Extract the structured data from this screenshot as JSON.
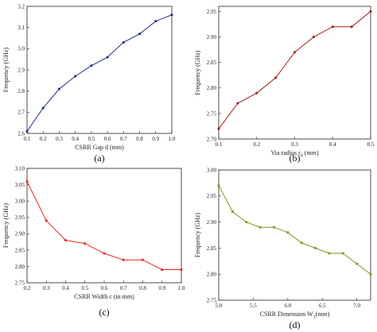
{
  "chart_data": [
    {
      "type": "line",
      "caption": "(a)",
      "xlabel": "CSRR Gap d (mm)",
      "ylabel": "Frequency (GHz)",
      "xlim": [
        0.1,
        1.0
      ],
      "ylim": [
        2.6,
        3.2
      ],
      "xticks": [
        "0.1",
        "0.2",
        "0.3",
        "0.4",
        "0.5",
        "0.6",
        "0.7",
        "0.8",
        "0.9",
        "1.0"
      ],
      "yticks": [
        "2.6",
        "2.7",
        "2.8",
        "2.9",
        "3.0",
        "3.1",
        "3.2"
      ],
      "color": "#1f2a8a",
      "x": [
        0.1,
        0.2,
        0.3,
        0.4,
        0.5,
        0.6,
        0.7,
        0.8,
        0.9,
        1.0
      ],
      "y": [
        2.61,
        2.72,
        2.81,
        2.87,
        2.92,
        2.96,
        3.03,
        3.07,
        3.13,
        3.16
      ]
    },
    {
      "type": "line",
      "caption": "(b)",
      "xlabel": "Via radius r",
      "xlabel_sub": "0",
      "xlabel_suffix": " (mm)",
      "ylabel": "Frequency (GHz)",
      "xlim": [
        0.1,
        0.5
      ],
      "ylim": [
        2.7,
        2.96
      ],
      "xticks": [
        "0.1",
        "0.2",
        "0.3",
        "0.4",
        "0.5"
      ],
      "yticks": [
        "2.70",
        "2.75",
        "2.80",
        "2.85",
        "2.90",
        "2.95"
      ],
      "color": "#a11d1d",
      "x": [
        0.1,
        0.15,
        0.2,
        0.25,
        0.3,
        0.35,
        0.4,
        0.45,
        0.5
      ],
      "y": [
        2.72,
        2.77,
        2.79,
        2.82,
        2.87,
        2.9,
        2.92,
        2.92,
        2.95
      ]
    },
    {
      "type": "line",
      "caption": "(c)",
      "xlabel": "CSRR Width c (in mm)",
      "ylabel": "Frequency (GHz)",
      "xlim": [
        0.2,
        1.0
      ],
      "ylim": [
        2.75,
        3.1
      ],
      "xticks": [
        "0.2",
        "0.3",
        "0.4",
        "0.5",
        "0.6",
        "0.7",
        "0.8",
        "0.9",
        "1.0"
      ],
      "yticks": [
        "2.75",
        "2.80",
        "2.85",
        "2.90",
        "2.95",
        "3.00",
        "3.05",
        "3.10"
      ],
      "color": "#e8262a",
      "x": [
        0.2,
        0.3,
        0.4,
        0.5,
        0.6,
        0.7,
        0.8,
        0.9,
        1.0
      ],
      "y": [
        3.06,
        2.94,
        2.88,
        2.87,
        2.84,
        2.82,
        2.82,
        2.79,
        2.79
      ]
    },
    {
      "type": "line",
      "caption": "(d)",
      "xlabel": "CSRR Dimension W",
      "xlabel_sub": "1",
      "xlabel_suffix": "(mm)",
      "ylabel": "Frequency (GHz)",
      "xlim": [
        5.0,
        7.2
      ],
      "ylim": [
        2.75,
        3.0
      ],
      "xticks": [
        "5.0",
        "5.5",
        "6.0",
        "6.5",
        "7.0"
      ],
      "yticks": [
        "2.75",
        "2.80",
        "2.85",
        "2.90",
        "2.95",
        "3.00"
      ],
      "color": "#8a8f1a",
      "x": [
        5.0,
        5.2,
        5.4,
        5.6,
        5.8,
        6.0,
        6.2,
        6.4,
        6.6,
        6.8,
        7.0,
        7.2
      ],
      "y": [
        2.97,
        2.92,
        2.9,
        2.89,
        2.89,
        2.88,
        2.86,
        2.85,
        2.84,
        2.84,
        2.82,
        2.8
      ]
    }
  ]
}
